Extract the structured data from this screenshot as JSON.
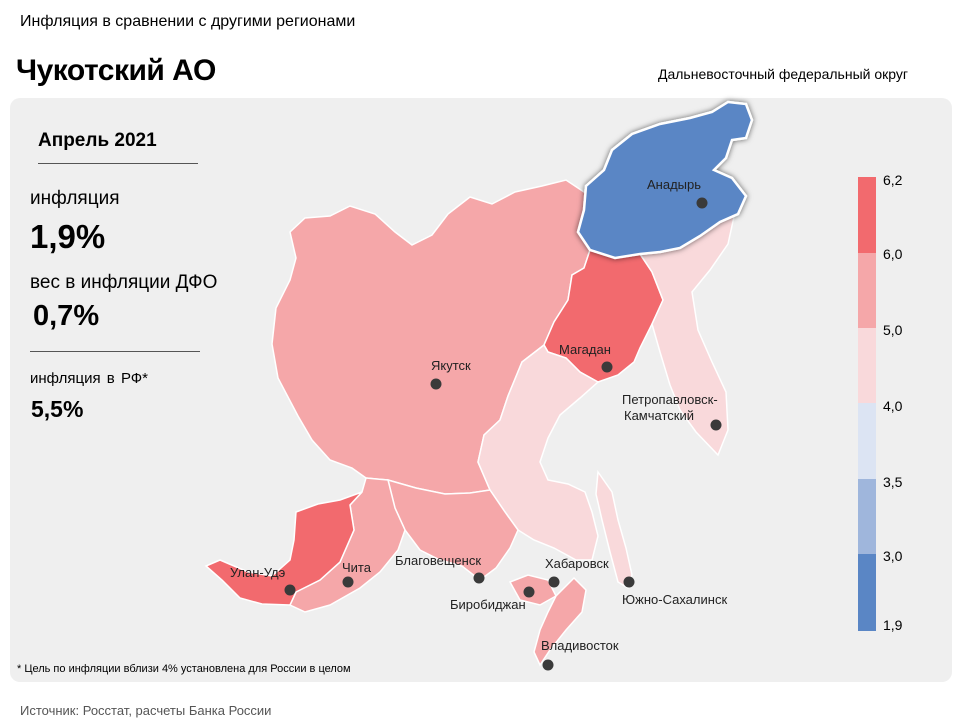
{
  "header": {
    "caption": "Инфляция в сравнении с другими регионами",
    "region_title": "Чукотский АО",
    "district": "Дальневосточный федеральный округ"
  },
  "stats": {
    "period": "Апрель 2021",
    "inflation_label": "инфляция",
    "inflation_value": "1,9%",
    "weight_label": "вес в инфляции ДФО",
    "weight_value": "0,7%",
    "rf_label": "инфляция в РФ*",
    "rf_value": "5,5%"
  },
  "footnote": "* Цель по инфляции вблизи 4% установлена для России в целом",
  "source": "Источник: Росстат, расчеты Банка России",
  "legend": {
    "ticks": [
      "6,2",
      "6,0",
      "5,0",
      "4,0",
      "3,5",
      "3,0",
      "1,9"
    ],
    "bins": [
      {
        "range": "6,0–6,2",
        "color": "#f26a6e"
      },
      {
        "range": "5,0–6,0",
        "color": "#f5a7a9"
      },
      {
        "range": "4,0–5,0",
        "color": "#f9d9db"
      },
      {
        "range": "3,5–4,0",
        "color": "#dce4f3"
      },
      {
        "range": "3,0–3,5",
        "color": "#9fb6dc"
      },
      {
        "range": "1,9–3,0",
        "color": "#5a86c5"
      }
    ]
  },
  "map": {
    "highlighted_region": "Чукотский АО",
    "regions": [
      {
        "name": "Чукотский АО",
        "color": "#5a86c5"
      },
      {
        "name": "Магаданская область",
        "color": "#f26a6e"
      },
      {
        "name": "Республика Саха (Якутия)",
        "color": "#f5a7a9"
      },
      {
        "name": "Камчатский край",
        "color": "#f9d9db"
      },
      {
        "name": "Хабаровский край",
        "color": "#f9d9db"
      },
      {
        "name": "Сахалинская область",
        "color": "#f9d9db"
      },
      {
        "name": "Приморский край",
        "color": "#f5a7a9"
      },
      {
        "name": "Еврейская АО",
        "color": "#f5a7a9"
      },
      {
        "name": "Амурская область",
        "color": "#f5a7a9"
      },
      {
        "name": "Забайкальский край",
        "color": "#f5a7a9"
      },
      {
        "name": "Республика Бурятия",
        "color": "#f26a6e"
      }
    ],
    "cities": [
      {
        "name": "Анадырь"
      },
      {
        "name": "Якутск"
      },
      {
        "name": "Магадан"
      },
      {
        "name": "Петропавловск-"
      },
      {
        "name": "Камчатский"
      },
      {
        "name": "Улан-Удэ"
      },
      {
        "name": "Чита"
      },
      {
        "name": "Благовещенск"
      },
      {
        "name": "Биробиджан"
      },
      {
        "name": "Хабаровск"
      },
      {
        "name": "Южно-Сахалинск"
      },
      {
        "name": "Владивосток"
      }
    ]
  }
}
